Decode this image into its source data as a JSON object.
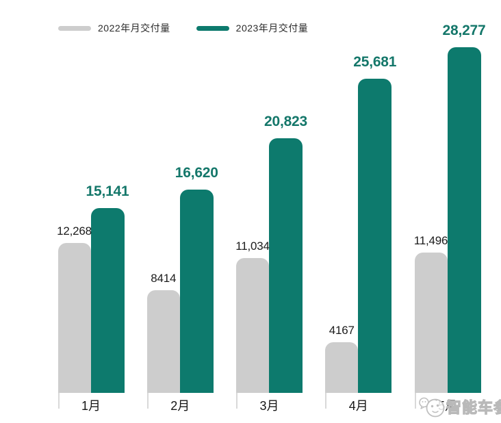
{
  "legend": {
    "items": [
      {
        "label": "2022年月交付量",
        "color": "#cdcdcd"
      },
      {
        "label": "2023年月交付量",
        "color": "#0d7a6d"
      }
    ]
  },
  "chart_data": {
    "type": "bar",
    "categories": [
      "1月",
      "2月",
      "3月",
      "4月",
      "5月"
    ],
    "series": [
      {
        "name": "2022年月交付量",
        "color": "#cdcdcd",
        "label_color": "#1c1c1c",
        "values": [
          12268,
          8414,
          11034,
          4167,
          11496
        ],
        "display": [
          "12,268",
          "8414",
          "11,034",
          "4167",
          "11,496"
        ]
      },
      {
        "name": "2023年月交付量",
        "color": "#0d7a6d",
        "label_color": "#14776a",
        "values": [
          15141,
          16620,
          20823,
          25681,
          28277
        ],
        "display": [
          "15,141",
          "16,620",
          "20,823",
          "25,681",
          "28,277"
        ]
      }
    ],
    "ylim": [
      0,
      28277
    ],
    "grid": false,
    "legend_position": "top-left",
    "value_labels": true,
    "axis_tick_color": "#d9d9d9"
  },
  "watermark": {
    "text": "智能车参",
    "icon": "mascot-face-icon",
    "color": "#bcbcbc"
  }
}
